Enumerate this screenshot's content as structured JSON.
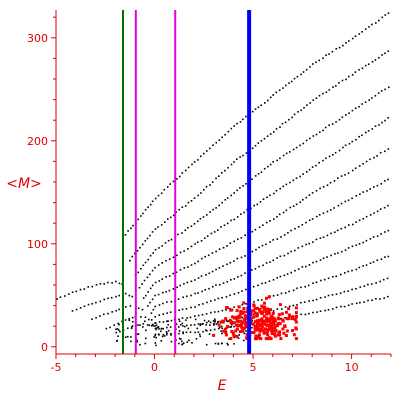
{
  "chart_data": {
    "type": "scatter",
    "title": "",
    "xlabel": "E",
    "ylabel": "<M>",
    "xlim": [
      -5,
      12
    ],
    "ylim": [
      -7,
      327
    ],
    "grid": false,
    "x_ticks": [
      "-5",
      "0",
      "5",
      "10"
    ],
    "x_tick_values": [
      -5,
      0,
      5,
      10
    ],
    "y_ticks": [
      "0",
      "100",
      "200",
      "300"
    ],
    "y_tick_values": [
      0,
      100,
      200,
      300
    ],
    "axis_color": "#e00000",
    "vertical_lines": [
      {
        "x": -1.6,
        "color": "#007000"
      },
      {
        "x": -0.95,
        "color": "#e000e0"
      },
      {
        "x": 1.05,
        "color": "#e000e0"
      },
      {
        "x": 4.8,
        "color": "#0000ff"
      }
    ],
    "series": [
      {
        "color": "#000000",
        "marker": "dot",
        "curves": [
          {
            "x": [
              -1.5,
              0,
              2,
              4,
              6,
              8,
              10,
              12
            ],
            "y": [
              110,
              145,
              180,
              215,
              245,
              275,
              300,
              327
            ]
          },
          {
            "x": [
              -1.3,
              0,
              2,
              4,
              6,
              8,
              10,
              12
            ],
            "y": [
              85,
              115,
              145,
              180,
              210,
              240,
              265,
              290
            ]
          },
          {
            "x": [
              -1.0,
              0,
              2,
              4,
              6,
              8,
              10,
              12
            ],
            "y": [
              70,
              95,
              120,
              150,
              180,
              205,
              230,
              255
            ]
          },
          {
            "x": [
              -0.8,
              0,
              2,
              4,
              6,
              8,
              10,
              12
            ],
            "y": [
              58,
              78,
              100,
              125,
              150,
              175,
              200,
              225
            ]
          },
          {
            "x": [
              -0.6,
              0,
              2,
              4,
              6,
              8,
              10,
              12
            ],
            "y": [
              48,
              63,
              82,
              103,
              125,
              150,
              172,
              195
            ]
          },
          {
            "x": [
              -0.4,
              0,
              2,
              4,
              6,
              8,
              10,
              12
            ],
            "y": [
              40,
              50,
              66,
              84,
              104,
              125,
              145,
              165
            ]
          },
          {
            "x": [
              -0.2,
              0,
              2,
              4,
              6,
              8,
              10,
              12
            ],
            "y": [
              33,
              40,
              52,
              67,
              85,
              103,
              120,
              140
            ]
          },
          {
            "x": [
              0,
              2,
              4,
              6,
              8,
              10,
              12
            ],
            "y": [
              30,
              40,
              52,
              66,
              82,
              98,
              115
            ]
          },
          {
            "x": [
              0,
              2,
              4,
              6,
              8,
              10,
              12
            ],
            "y": [
              24,
              30,
              39,
              50,
              62,
              75,
              90
            ]
          },
          {
            "x": [
              0,
              2,
              4,
              6,
              8,
              10,
              12
            ],
            "y": [
              18,
              22,
              28,
              36,
              46,
              56,
              68
            ]
          },
          {
            "x": [
              0,
              2,
              4,
              6,
              8,
              10,
              12
            ],
            "y": [
              12,
              15,
              20,
              27,
              34,
              42,
              50
            ]
          },
          {
            "x": [
              -5,
              -4,
              -3,
              -2,
              -1.5
            ],
            "y": [
              47,
              55,
              61,
              64,
              60
            ]
          },
          {
            "x": [
              -4.2,
              -3,
              -2,
              -1.5,
              -1
            ],
            "y": [
              36,
              44,
              50,
              52,
              48
            ]
          },
          {
            "x": [
              -3.2,
              -2,
              -1.5,
              -1,
              -0.5
            ],
            "y": [
              28,
              36,
              40,
              40,
              36
            ]
          },
          {
            "x": [
              -2.5,
              -1.5,
              -1,
              -0.5,
              0
            ],
            "y": [
              18,
              27,
              30,
              29,
              25
            ]
          },
          {
            "x": [
              -2,
              -1.2,
              -0.6,
              0,
              0.5
            ],
            "y": [
              14,
              20,
              23,
              21,
              18
            ]
          }
        ]
      },
      {
        "color": "#ff0000",
        "marker": "square",
        "cluster": {
          "x_range": [
            3.0,
            7.2
          ],
          "y_range": [
            8,
            55
          ],
          "center_x": 5.3,
          "center_y": 24
        }
      }
    ]
  }
}
